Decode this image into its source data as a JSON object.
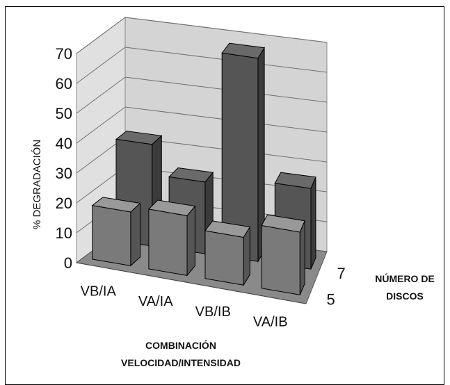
{
  "chart_data": {
    "type": "bar",
    "categories": [
      "VB/IA",
      "VA/IA",
      "VB/IB",
      "VA/IB"
    ],
    "depth_categories": [
      "5",
      "7"
    ],
    "series": [
      {
        "name": "5",
        "values": [
          18,
          20,
          16,
          21
        ]
      },
      {
        "name": "7",
        "values": [
          34,
          24,
          68,
          27
        ]
      }
    ],
    "ylim": [
      0,
      70
    ],
    "yticks": [
      "0",
      "10",
      "20",
      "30",
      "40",
      "50",
      "60",
      "70"
    ],
    "ylabel": "% DEGRADACIÓN",
    "xlabel": [
      "COMBINACIÓN",
      "VELOCIDAD/INTENSIDAD"
    ],
    "zlabel": [
      "NÚMERO DE",
      "DISCOS"
    ],
    "grid": true,
    "colors": {
      "front_bar": "#7a7a7a",
      "back_bar": "#555555",
      "wall": "#d4d4d4",
      "floor": "#8a8a8a"
    }
  }
}
